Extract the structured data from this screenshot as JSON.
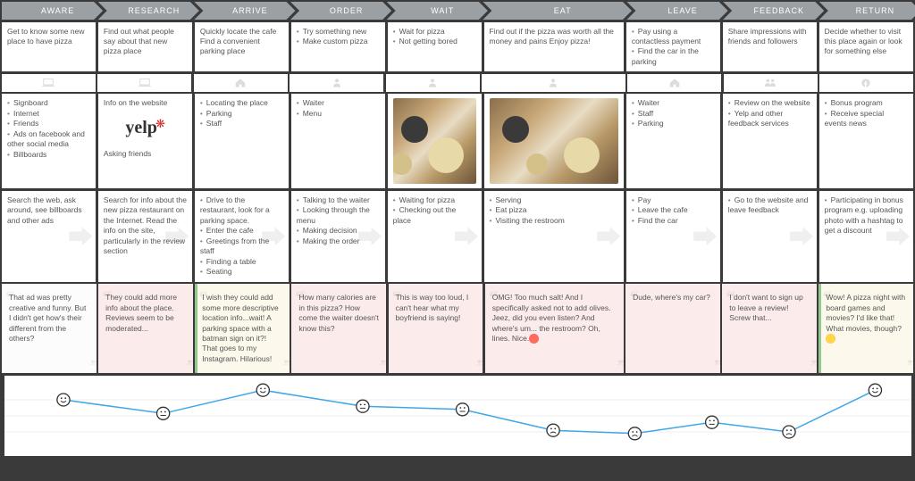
{
  "stages": [
    "AWARE",
    "RESEARCH",
    "ARRIVE",
    "ORDER",
    "WAIT",
    "EAT",
    "LEAVE",
    "FEEDBACK",
    "RETURN"
  ],
  "goals": {
    "aware": "Get to know some new place to have pizza",
    "research": "Find out what people say about that new pizza place",
    "arrive": "Quickly locate the cafe\nFind a convenient parking place",
    "order": [
      "Try something new",
      "Make custom pizza"
    ],
    "wait": [
      "Wait for pizza",
      "Not getting bored"
    ],
    "eat": "Find out if the pizza was worth all the money and pains\nEnjoy pizza!",
    "leave": [
      "Pay using a contactless payment",
      "Find the car in the parking"
    ],
    "feedback": "Share impressions with friends and followers",
    "return": "Decide whether to visit this place again or look for something else"
  },
  "touchpoints": {
    "aware": [
      "Signboard",
      "Internet",
      "Friends",
      "Ads on facebook and other social media",
      "Billboards"
    ],
    "research_top": "Info on the website",
    "research_logo": "yelp",
    "research_bottom": "Asking friends",
    "arrive": [
      "Locating the place",
      "Parking",
      "Staff"
    ],
    "order": [
      "Waiter",
      "Menu"
    ],
    "leave": [
      "Waiter",
      "Staff",
      "Parking"
    ],
    "feedback": [
      "Review on the website",
      "Yelp and other feedback services"
    ],
    "return": [
      "Bonus program",
      "Receive special events news"
    ]
  },
  "actions": {
    "aware": "Search the web, ask around, see billboards and other ads",
    "research": "Search for info about the new pizza restaurant on the Internet.\nRead the info on the site, particularly in the review section",
    "arrive": [
      "Drive to the restaurant, look for a parking space.",
      "Enter the cafe",
      "Greetings from the staff",
      "Finding a table",
      "Seating"
    ],
    "order": [
      "Talking to the waiter",
      "Looking through the menu",
      "Making decision",
      "Making the order"
    ],
    "wait": [
      "Waiting for pizza",
      "Checking out the place"
    ],
    "eat": [
      "Serving",
      "Eat pizza",
      "Visiting the restroom"
    ],
    "leave": [
      "Pay",
      "Leave the cafe",
      "Find the car"
    ],
    "feedback": [
      "Go to the website and leave feedback"
    ],
    "return": [
      "Participating in bonus program e.g. uploading photo with a hashtag to get a discount"
    ]
  },
  "quotes": {
    "aware": "That ad was pretty creative and funny. But I didn't get how's their different from the others?",
    "research": "They could add more info about the place. Reviews seem to be moderated...",
    "arrive": "I wish they could add some more descriptive location info...wait! A parking space with a batman sign on it?! That goes to my Instagram. Hilarious!",
    "order": "How many calories are in this pizza? How come the waiter doesn't know this?",
    "wait": "This is way too loud, I can't hear what my boyfriend is saying!",
    "eat": "OMG! Too much salt! And I specifically asked not to add olives. Jeez, did you even listen? And where's um... the restroom? Oh, lines. Nice.",
    "leave": "Dude, where's my car?",
    "feedback": "I don't want to sign up to leave a review! Screw that...",
    "return": "Wow! A pizza night with board games and movies? I'd like that! What movies, though?"
  },
  "chart": {
    "type": "line",
    "x": [
      0.065,
      0.175,
      0.285,
      0.395,
      0.505,
      0.605,
      0.695,
      0.78,
      0.865,
      0.96
    ],
    "y": [
      0.3,
      0.47,
      0.18,
      0.38,
      0.42,
      0.68,
      0.72,
      0.58,
      0.7,
      0.18
    ],
    "face": [
      "happy",
      "neutral",
      "happy",
      "neutral",
      "neutral",
      "sad",
      "sad",
      "neutral",
      "sad",
      "grin"
    ],
    "line_color": "#3fa7e8",
    "grid_color": "#efefef",
    "background": "#ffffff",
    "point_radius": 7
  },
  "colors": {
    "stage_header_bg": "#9aa0a3",
    "page_bg": "#3a3a3a",
    "quote_red": "#fbeceb",
    "quote_yellow": "#fdf8ec",
    "yelp_red": "#d32323"
  }
}
